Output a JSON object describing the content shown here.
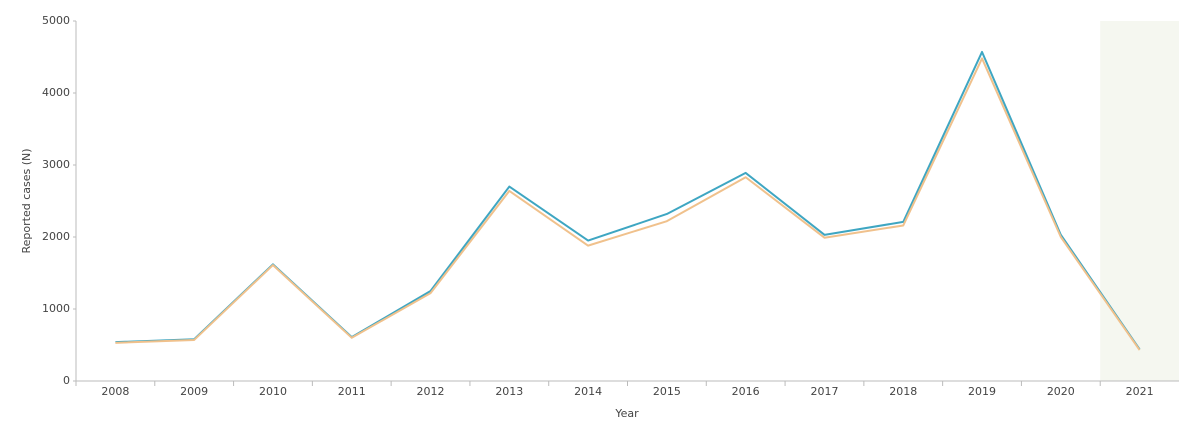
{
  "chart_data": {
    "type": "line",
    "x_label": "Year",
    "y_label": "Reported cases (N)",
    "categories": [
      "2008",
      "2009",
      "2010",
      "2011",
      "2012",
      "2013",
      "2014",
      "2015",
      "2016",
      "2017",
      "2018",
      "2019",
      "2020",
      "2021"
    ],
    "series": [
      {
        "color": "#3ea6c2",
        "values": [
          540,
          580,
          1620,
          610,
          1250,
          2700,
          1950,
          2320,
          2890,
          2030,
          2210,
          4570,
          2030,
          440
        ]
      },
      {
        "color": "#f0c18c",
        "values": [
          530,
          570,
          1610,
          600,
          1220,
          2640,
          1880,
          2220,
          2830,
          1990,
          2160,
          4480,
          2000,
          430
        ]
      }
    ],
    "ylim": [
      0,
      5000
    ],
    "yticks": [
      0,
      1000,
      2000,
      3000,
      4000,
      5000
    ],
    "grid": false
  }
}
